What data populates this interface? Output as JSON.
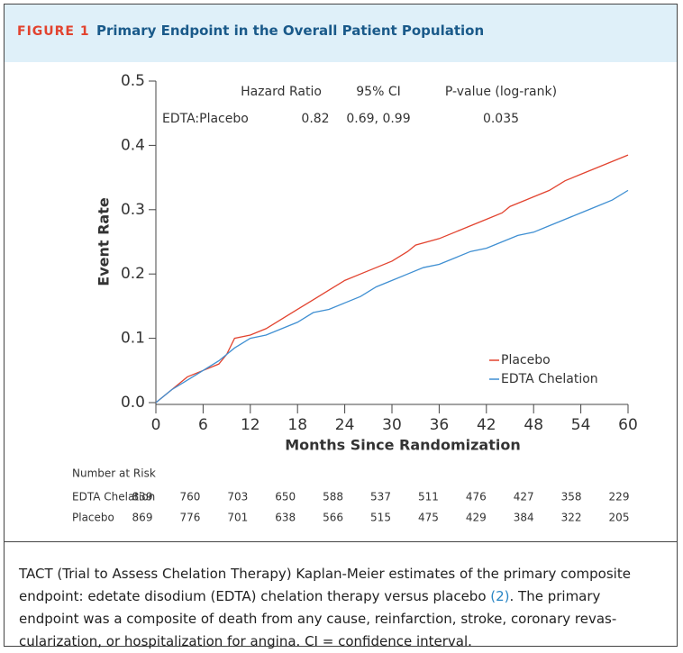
{
  "figure": {
    "label": "FIGURE 1",
    "title": "Primary Endpoint in the Overall Patient Population"
  },
  "chart_data": {
    "type": "line",
    "xlabel": "Months Since Randomization",
    "ylabel": "Event Rate",
    "xlim": [
      0,
      60
    ],
    "xticks": [
      0,
      6,
      12,
      18,
      24,
      30,
      36,
      42,
      48,
      54,
      60
    ],
    "ylim": [
      0,
      0.5
    ],
    "yticks": [
      {
        "value": 0,
        "label": "0.0"
      },
      0.1,
      0.2,
      0.3,
      0.4,
      0.5
    ],
    "legend": "lower right",
    "series": [
      {
        "name": "Placebo",
        "color": "#e2432f",
        "x": [
          0,
          1,
          3,
          4,
          6,
          8,
          9,
          10,
          12,
          14,
          16,
          18,
          20,
          22,
          24,
          26,
          28,
          30,
          32,
          33,
          36,
          38,
          40,
          42,
          44,
          45,
          47,
          48,
          50,
          52,
          54,
          56,
          58,
          60
        ],
        "values": [
          0,
          0.01,
          0.03,
          0.04,
          0.05,
          0.06,
          0.075,
          0.1,
          0.105,
          0.115,
          0.13,
          0.145,
          0.16,
          0.175,
          0.19,
          0.2,
          0.21,
          0.22,
          0.235,
          0.245,
          0.255,
          0.265,
          0.275,
          0.285,
          0.295,
          0.305,
          0.315,
          0.32,
          0.33,
          0.345,
          0.355,
          0.365,
          0.375,
          0.385
        ]
      },
      {
        "name": "EDTA Chelation",
        "color": "#3f8fd2",
        "x": [
          0,
          2,
          4,
          6,
          8,
          10,
          12,
          14,
          16,
          18,
          20,
          22,
          24,
          26,
          28,
          30,
          32,
          34,
          36,
          38,
          40,
          42,
          44,
          46,
          48,
          50,
          52,
          54,
          56,
          58,
          60
        ],
        "values": [
          0,
          0.02,
          0.035,
          0.05,
          0.065,
          0.085,
          0.1,
          0.105,
          0.115,
          0.125,
          0.14,
          0.145,
          0.155,
          0.165,
          0.18,
          0.19,
          0.2,
          0.21,
          0.215,
          0.225,
          0.235,
          0.24,
          0.25,
          0.26,
          0.265,
          0.275,
          0.285,
          0.295,
          0.305,
          0.315,
          0.33
        ]
      }
    ],
    "stats_table": {
      "headers": [
        "Hazard Ratio",
        "95% CI",
        "P-value (log-rank)"
      ],
      "row_label": "EDTA:Placebo",
      "row": [
        0.82,
        "0.69, 0.99",
        0.035
      ]
    },
    "risk_table": {
      "title": "Number at Risk",
      "rows": [
        {
          "label": "EDTA Chelation",
          "values": [
            839,
            760,
            703,
            650,
            588,
            537,
            511,
            476,
            427,
            358,
            229
          ]
        },
        {
          "label": "Placebo",
          "values": [
            869,
            776,
            701,
            638,
            566,
            515,
            475,
            429,
            384,
            322,
            205
          ]
        }
      ]
    }
  },
  "caption": [
    "TACT (Trial to Assess Chelation Therapy) Kaplan-Meier estimates of the primary composite",
    [
      "endpoint: edetate disodium (EDTA) chelation therapy versus placebo ",
      "(2)",
      ". The primary"
    ],
    "endpoint was a composite of death from any cause, reinfarction, stroke, coronary revas-",
    "cularization, or hospitalization for angina. CI = confidence interval."
  ]
}
